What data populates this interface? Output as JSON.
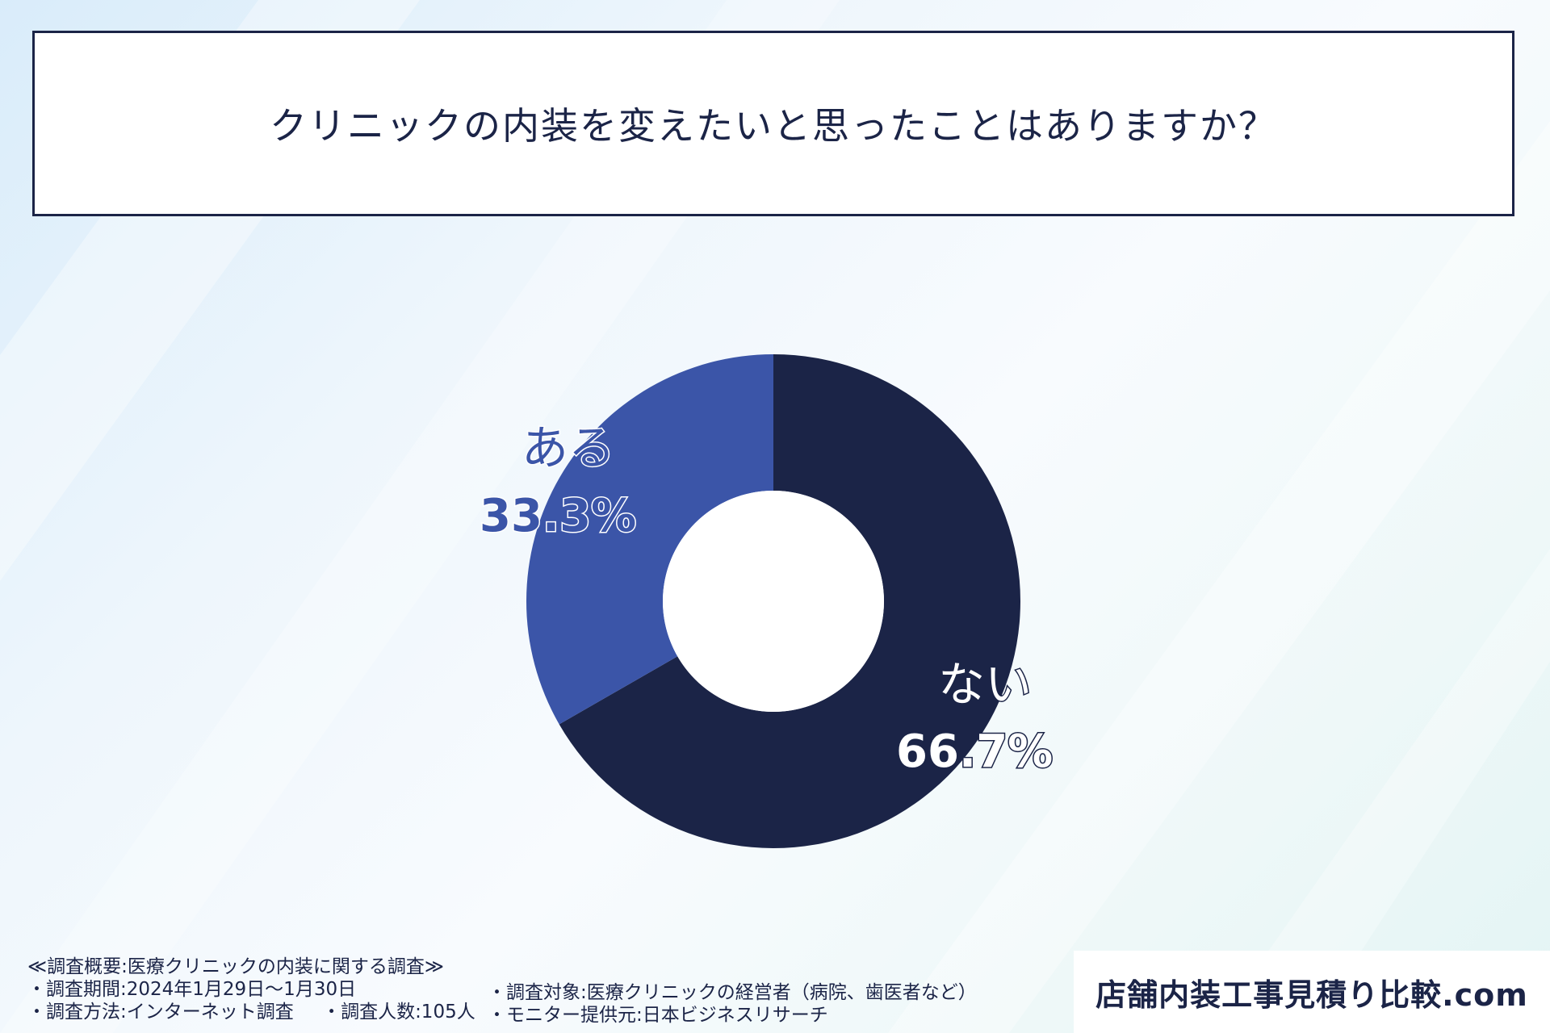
{
  "title": "クリニックの内装を変えたいと思ったことはありますか？",
  "chart_data": {
    "type": "pie",
    "donut": true,
    "title": "クリニックの内装を変えたいと思ったことはありますか？",
    "slices": [
      {
        "label": "ない",
        "percent_text": "66.7%",
        "value": 66.7,
        "color": "#1b2447"
      },
      {
        "label": "ある",
        "percent_text": "33.3%",
        "value": 33.3,
        "color": "#3b55a8"
      }
    ]
  },
  "survey": {
    "heading": "≪調査概要:医療クリニックの内装に関する調査≫",
    "period": "・調査期間:2024年1月29日〜1月30日",
    "method": "・調査方法:インターネット調査",
    "count": "・調査人数:105人",
    "target": "・調査対象:医療クリニックの経営者（病院、歯医者など）",
    "provider": "・モニター提供元:日本ビジネスリサーチ"
  },
  "brand": {
    "name": "店舗内装工事見積り比較.com"
  }
}
